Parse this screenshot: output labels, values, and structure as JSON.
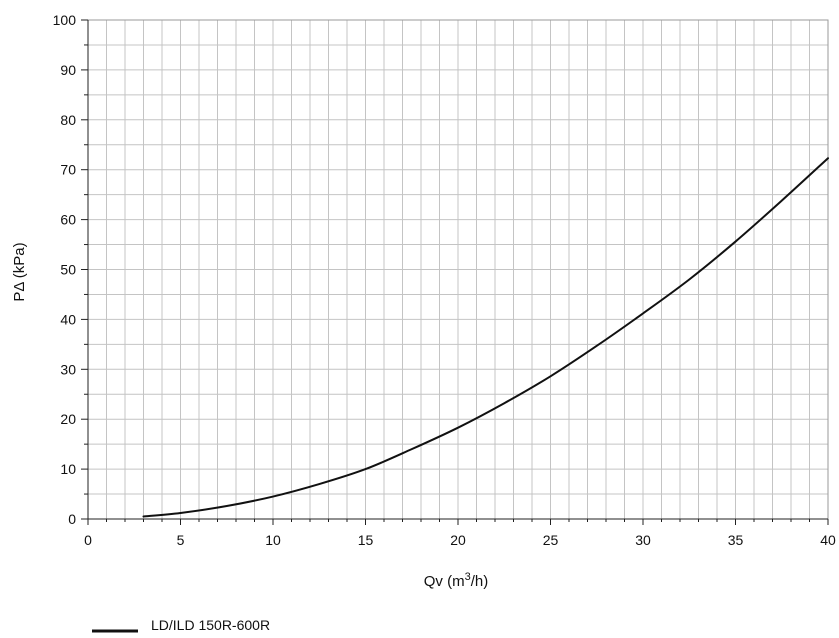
{
  "chart_data": {
    "type": "line",
    "xlabel_main": "Qv (m",
    "xlabel_sup": "3",
    "xlabel_tail": "/h)",
    "ylabel": "PΔ (kPa)",
    "xlim": [
      0,
      40
    ],
    "ylim": [
      0,
      100
    ],
    "x_ticks": [
      "0",
      "5",
      "10",
      "15",
      "20",
      "25",
      "30",
      "35",
      "40"
    ],
    "y_ticks": [
      "0",
      "10",
      "20",
      "30",
      "40",
      "50",
      "60",
      "70",
      "80",
      "90",
      "100"
    ],
    "grid": true,
    "legend_position": "bottom-left",
    "series": [
      {
        "name": "LD/ILD 150R-600R",
        "color": "#111111",
        "x": [
          3,
          5,
          7.5,
          10,
          12.5,
          15,
          17.5,
          20,
          22.5,
          25,
          27.5,
          30,
          32.5,
          35,
          37.5,
          40
        ],
        "y": [
          0.5,
          1.2,
          2.6,
          4.5,
          7.0,
          10.0,
          14.0,
          18.3,
          23.2,
          28.6,
          34.7,
          41.2,
          48.0,
          55.6,
          63.8,
          72.3
        ]
      }
    ]
  }
}
